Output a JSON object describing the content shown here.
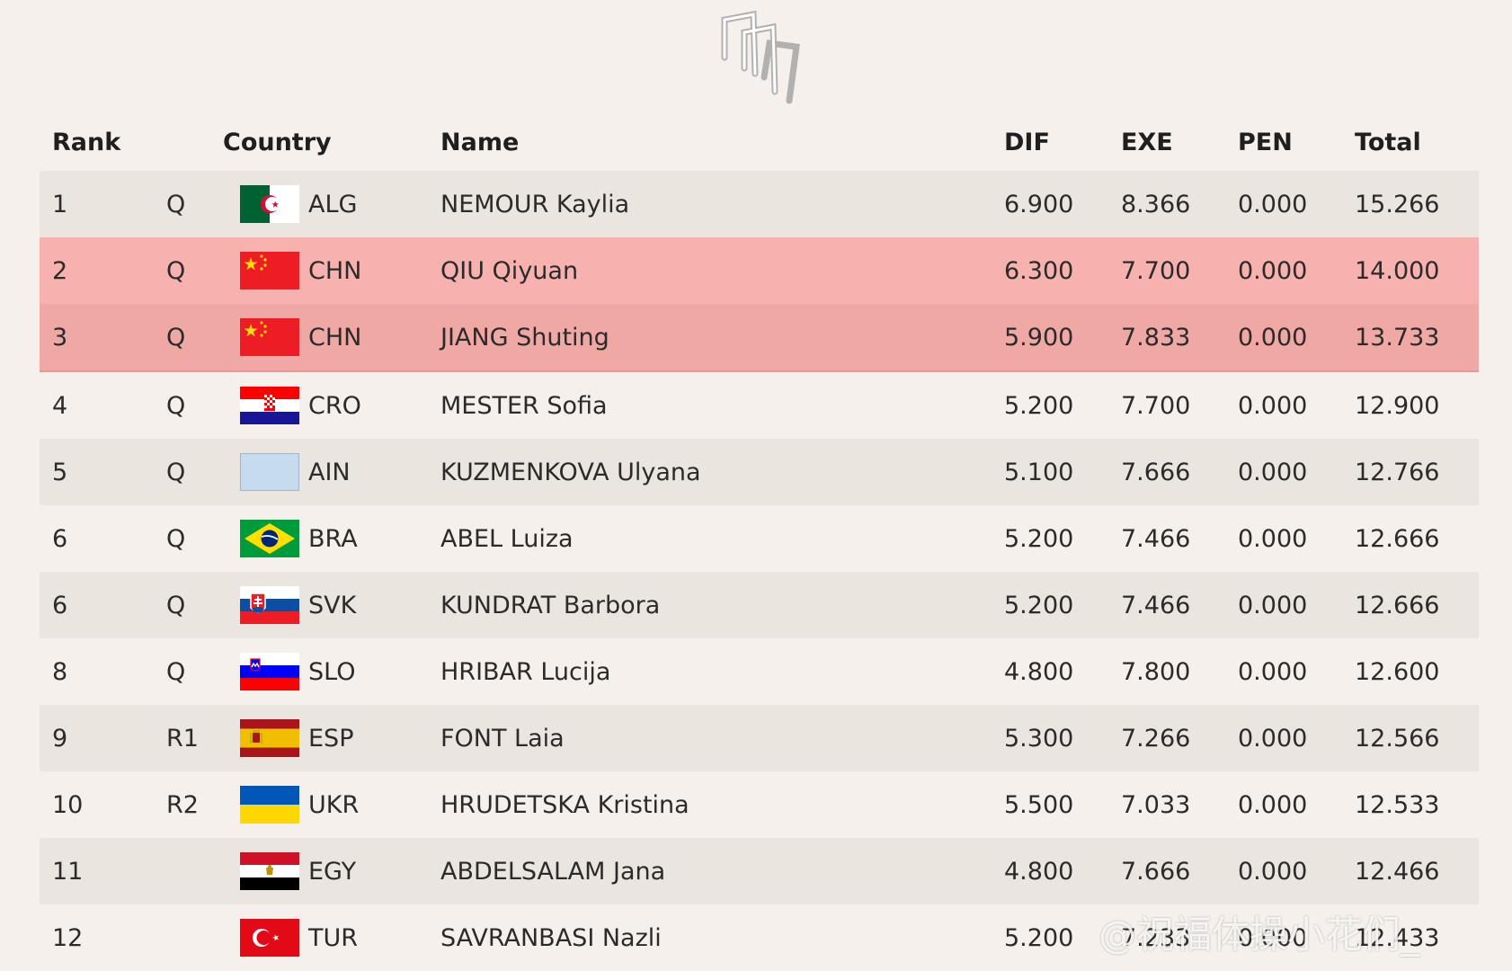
{
  "header": {
    "rank": "Rank",
    "country": "Country",
    "name": "Name",
    "dif": "DIF",
    "exe": "EXE",
    "pen": "PEN",
    "total": "Total"
  },
  "rows": [
    {
      "rank": "1",
      "q": "Q",
      "flag": "flag-alg-icon",
      "country": "ALG",
      "name": "NEMOUR Kaylia",
      "dif": "6.900",
      "exe": "8.366",
      "pen": "0.000",
      "total": "15.266"
    },
    {
      "rank": "2",
      "q": "Q",
      "flag": "flag-chn-icon",
      "country": "CHN",
      "name": "QIU Qiyuan",
      "dif": "6.300",
      "exe": "7.700",
      "pen": "0.000",
      "total": "14.000"
    },
    {
      "rank": "3",
      "q": "Q",
      "flag": "flag-chn-icon",
      "country": "CHN",
      "name": "JIANG Shuting",
      "dif": "5.900",
      "exe": "7.833",
      "pen": "0.000",
      "total": "13.733"
    },
    {
      "rank": "4",
      "q": "Q",
      "flag": "flag-cro-icon",
      "country": "CRO",
      "name": "MESTER Sofia",
      "dif": "5.200",
      "exe": "7.700",
      "pen": "0.000",
      "total": "12.900"
    },
    {
      "rank": "5",
      "q": "Q",
      "flag": "flag-ain-icon",
      "country": "AIN",
      "name": "KUZMENKOVA Ulyana",
      "dif": "5.100",
      "exe": "7.666",
      "pen": "0.000",
      "total": "12.766"
    },
    {
      "rank": "6",
      "q": "Q",
      "flag": "flag-bra-icon",
      "country": "BRA",
      "name": "ABEL Luiza",
      "dif": "5.200",
      "exe": "7.466",
      "pen": "0.000",
      "total": "12.666"
    },
    {
      "rank": "6",
      "q": "Q",
      "flag": "flag-svk-icon",
      "country": "SVK",
      "name": "KUNDRAT Barbora",
      "dif": "5.200",
      "exe": "7.466",
      "pen": "0.000",
      "total": "12.666"
    },
    {
      "rank": "8",
      "q": "Q",
      "flag": "flag-slo-icon",
      "country": "SLO",
      "name": "HRIBAR Lucija",
      "dif": "4.800",
      "exe": "7.800",
      "pen": "0.000",
      "total": "12.600"
    },
    {
      "rank": "9",
      "q": "R1",
      "flag": "flag-esp-icon",
      "country": "ESP",
      "name": "FONT Laia",
      "dif": "5.300",
      "exe": "7.266",
      "pen": "0.000",
      "total": "12.566"
    },
    {
      "rank": "10",
      "q": "R2",
      "flag": "flag-ukr-icon",
      "country": "UKR",
      "name": "HRUDETSKA Kristina",
      "dif": "5.500",
      "exe": "7.033",
      "pen": "0.000",
      "total": "12.533"
    },
    {
      "rank": "11",
      "q": "",
      "flag": "flag-egy-icon",
      "country": "EGY",
      "name": "ABDELSALAM Jana",
      "dif": "4.800",
      "exe": "7.666",
      "pen": "0.000",
      "total": "12.466"
    },
    {
      "rank": "12",
      "q": "",
      "flag": "flag-tur-icon",
      "country": "TUR",
      "name": "SAVRANBASI Nazli",
      "dif": "5.200",
      "exe": "7.233",
      "pen": "0.000",
      "total": "12.433"
    }
  ],
  "watermark": "@祝福体操小花们_",
  "colors": {
    "background": "#f5f0eb",
    "row_alt": "#ebe5df",
    "highlight_1": "#f7b1ae",
    "highlight_2": "#f0a8a4"
  }
}
